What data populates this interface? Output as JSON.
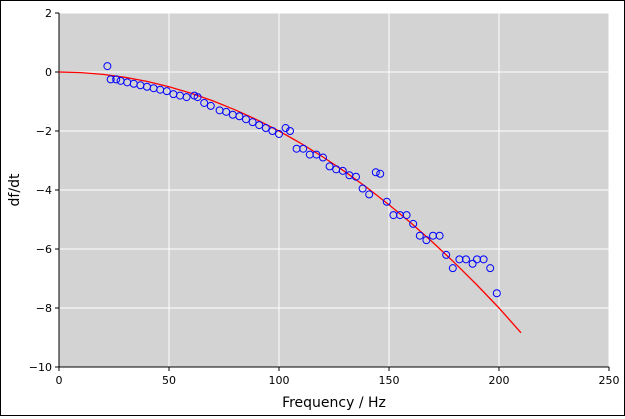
{
  "chart_data": {
    "type": "scatter",
    "xlabel": "Frequency / Hz",
    "ylabel": "df/dt",
    "xlim": [
      0,
      250
    ],
    "ylim": [
      -10,
      2
    ],
    "xticks": [
      0,
      50,
      100,
      150,
      200,
      250
    ],
    "yticks": [
      2,
      0,
      -2,
      -4,
      -6,
      -8,
      -10
    ],
    "xtick_labels": [
      "0",
      "50",
      "100",
      "150",
      "200",
      "250"
    ],
    "ytick_labels": [
      "2",
      "0",
      "−2",
      "−4",
      "−6",
      "−8",
      "−10"
    ],
    "grid": true,
    "legend": "none",
    "colors": {
      "plot_background": "#d3d3d3",
      "grid": "#ffffff",
      "points": "#0000ff",
      "fit_line": "#ff0000"
    },
    "series": [
      {
        "kind": "scatter",
        "marker": "open-circle",
        "points": [
          [
            22,
            0.2
          ],
          [
            23.5,
            -0.25
          ],
          [
            26,
            -0.25
          ],
          [
            28,
            -0.3
          ],
          [
            31,
            -0.35
          ],
          [
            34,
            -0.4
          ],
          [
            37,
            -0.45
          ],
          [
            40,
            -0.5
          ],
          [
            43,
            -0.55
          ],
          [
            46,
            -0.6
          ],
          [
            49,
            -0.65
          ],
          [
            52,
            -0.75
          ],
          [
            55,
            -0.8
          ],
          [
            58,
            -0.85
          ],
          [
            61.5,
            -0.8
          ],
          [
            63,
            -0.85
          ],
          [
            66,
            -1.05
          ],
          [
            69,
            -1.15
          ],
          [
            73,
            -1.3
          ],
          [
            76,
            -1.35
          ],
          [
            79,
            -1.45
          ],
          [
            82,
            -1.5
          ],
          [
            85,
            -1.6
          ],
          [
            88,
            -1.7
          ],
          [
            91,
            -1.8
          ],
          [
            94,
            -1.9
          ],
          [
            97,
            -2.0
          ],
          [
            100,
            -2.1
          ],
          [
            103,
            -1.9
          ],
          [
            105,
            -2.0
          ],
          [
            108,
            -2.6
          ],
          [
            111,
            -2.6
          ],
          [
            114,
            -2.8
          ],
          [
            117,
            -2.8
          ],
          [
            120,
            -2.9
          ],
          [
            123,
            -3.2
          ],
          [
            126,
            -3.3
          ],
          [
            129,
            -3.35
          ],
          [
            132,
            -3.5
          ],
          [
            135,
            -3.55
          ],
          [
            138,
            -3.95
          ],
          [
            141,
            -4.15
          ],
          [
            144,
            -3.4
          ],
          [
            146,
            -3.45
          ],
          [
            149,
            -4.4
          ],
          [
            152,
            -4.85
          ],
          [
            155,
            -4.85
          ],
          [
            158,
            -4.85
          ],
          [
            161,
            -5.15
          ],
          [
            164,
            -5.55
          ],
          [
            167,
            -5.7
          ],
          [
            170,
            -5.55
          ],
          [
            173,
            -5.55
          ],
          [
            176,
            -6.2
          ],
          [
            179,
            -6.65
          ],
          [
            182,
            -6.35
          ],
          [
            185,
            -6.35
          ],
          [
            188,
            -6.5
          ],
          [
            190,
            -6.35
          ],
          [
            193,
            -6.35
          ],
          [
            196,
            -6.65
          ],
          [
            199,
            -7.5
          ]
        ]
      },
      {
        "kind": "line",
        "points": [
          [
            0,
            0
          ],
          [
            10,
            -0.02
          ],
          [
            20,
            -0.08
          ],
          [
            30,
            -0.18
          ],
          [
            40,
            -0.32
          ],
          [
            50,
            -0.5
          ],
          [
            60,
            -0.72
          ],
          [
            70,
            -0.98
          ],
          [
            80,
            -1.28
          ],
          [
            90,
            -1.62
          ],
          [
            100,
            -2.0
          ],
          [
            110,
            -2.42
          ],
          [
            120,
            -2.88
          ],
          [
            130,
            -3.38
          ],
          [
            140,
            -3.92
          ],
          [
            150,
            -4.5
          ],
          [
            160,
            -5.12
          ],
          [
            170,
            -5.78
          ],
          [
            180,
            -6.48
          ],
          [
            190,
            -7.22
          ],
          [
            200,
            -8.0
          ],
          [
            210,
            -8.84
          ]
        ]
      }
    ]
  }
}
